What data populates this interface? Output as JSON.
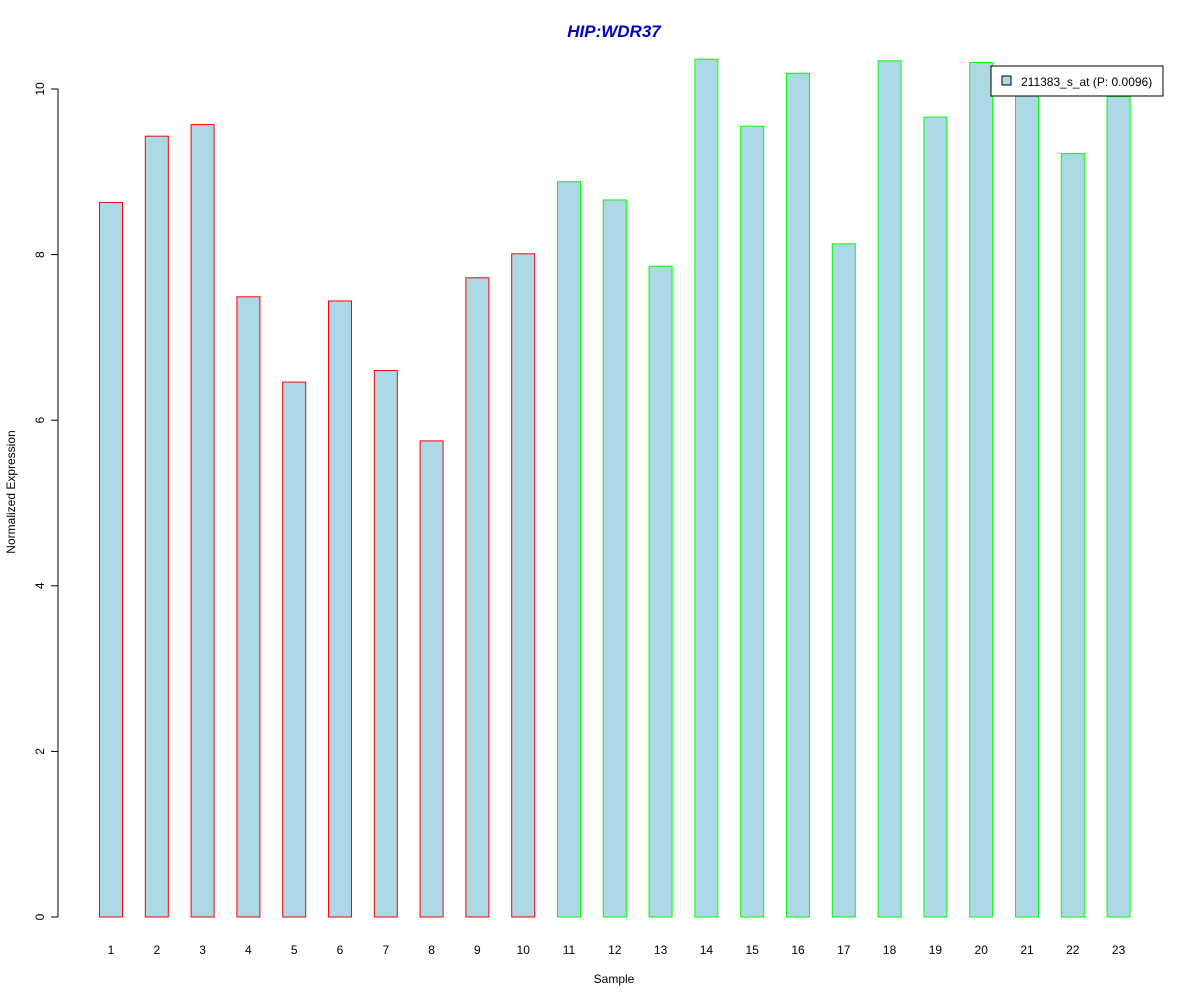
{
  "chart_data": {
    "type": "bar",
    "title": "HIP:WDR37",
    "xlabel": "Sample",
    "ylabel": "Normalized Expression",
    "ylim": [
      0,
      10.5
    ],
    "yticks": [
      0,
      2,
      4,
      6,
      8,
      10
    ],
    "grid": false,
    "legend_position": "top-right",
    "categories": [
      "1",
      "2",
      "3",
      "4",
      "5",
      "6",
      "7",
      "8",
      "9",
      "10",
      "11",
      "12",
      "13",
      "14",
      "15",
      "16",
      "17",
      "18",
      "19",
      "20",
      "21",
      "22",
      "23"
    ],
    "series": [
      {
        "name": "211383_s_at (P: 0.0096)",
        "values": [
          8.63,
          9.43,
          9.57,
          7.49,
          6.46,
          7.44,
          6.6,
          5.75,
          7.72,
          8.01,
          8.88,
          8.66,
          7.86,
          10.36,
          9.55,
          10.19,
          8.13,
          10.34,
          9.66,
          10.32,
          10.0,
          9.22,
          9.91
        ]
      }
    ],
    "groups": [
      {
        "samples": [
          1,
          2,
          3,
          4,
          5,
          6,
          7,
          8,
          9,
          10
        ],
        "border_color": "#ff0000"
      },
      {
        "samples": [
          11,
          12,
          13,
          14,
          15,
          16,
          17,
          18,
          19,
          20,
          21,
          22,
          23
        ],
        "border_color": "#00ff00"
      }
    ],
    "colors": {
      "bar_fill": "#add8e6",
      "title": "#0000cd",
      "axis": "#000000"
    }
  }
}
